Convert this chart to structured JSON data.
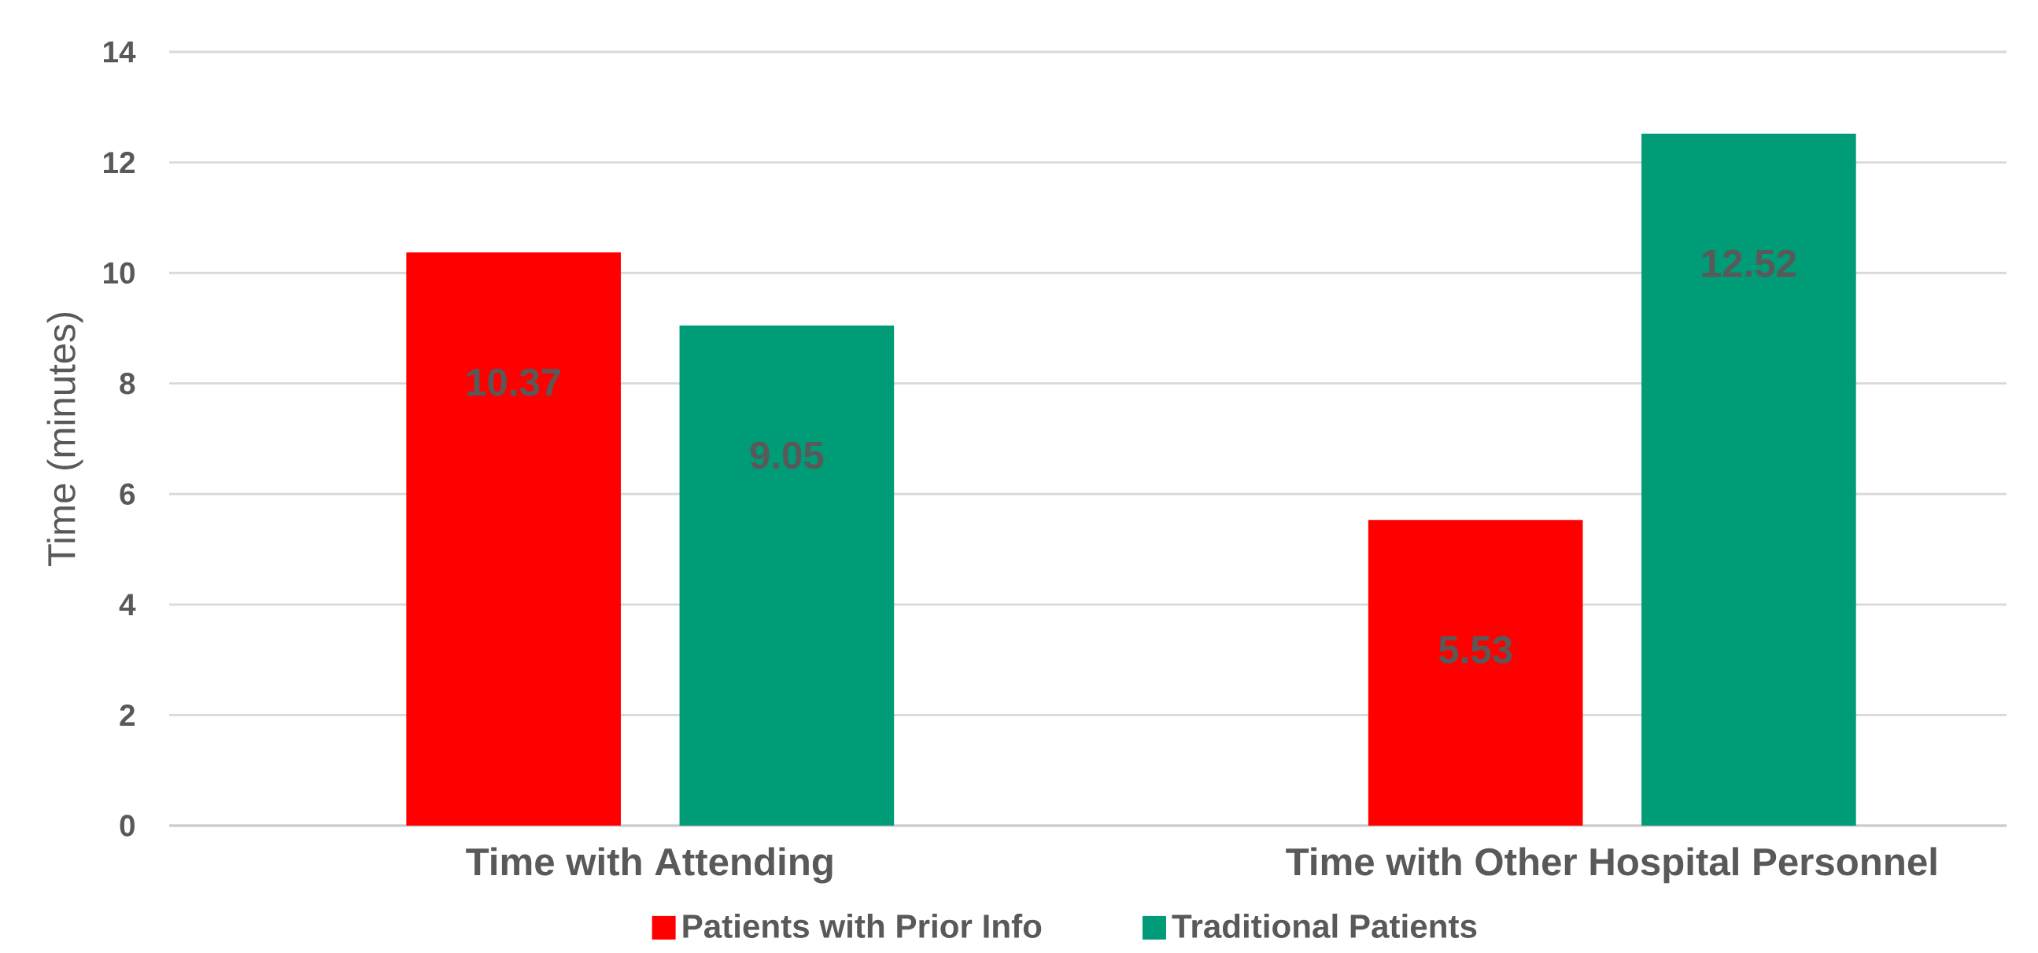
{
  "chart_data": {
    "type": "bar",
    "ylabel": "Time  (minutes)",
    "categories": [
      "Time with Attending",
      "Time with Other Hospital Personnel"
    ],
    "series": [
      {
        "name": "Patients with Prior Info",
        "color": "#ff0000",
        "values": [
          10.37,
          5.53
        ]
      },
      {
        "name": "Traditional Patients",
        "color": "#009b77",
        "values": [
          9.05,
          12.52
        ]
      }
    ],
    "ylim": [
      0,
      14
    ],
    "yticks": [
      0,
      2,
      4,
      6,
      8,
      10,
      12,
      14
    ],
    "grid": "y",
    "legend": "bottom",
    "data_labels": true
  }
}
